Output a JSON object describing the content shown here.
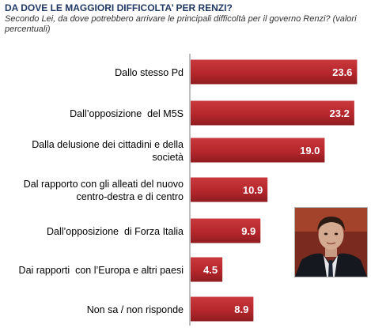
{
  "header": {
    "title": "DA DOVE LE MAGGIORI DIFFICOLTA’ PER RENZI?",
    "subtitle": "Secondo Lei, da dove potrebbero arrivare le principali difficoltà per il governo Renzi? (valori percentuali)"
  },
  "colors": {
    "bar": "#b5272c",
    "bar_dark": "#8a1a1e",
    "bar_light": "#d0484c",
    "label_text": "#000000",
    "value_text": "#ffffff"
  },
  "chart_data": {
    "type": "bar",
    "orientation": "horizontal",
    "title": "DA DOVE LE MAGGIORI DIFFICOLTA’ PER RENZI?",
    "categories": [
      [
        "Dallo stesso Pd"
      ],
      [
        "Dall’opposizione  del M5S"
      ],
      [
        "Dalla delusione dei cittadini e della",
        "società"
      ],
      [
        "Dal rapporto con gli alleati del nuovo",
        "centro-destra e di centro"
      ],
      [
        "Dall’opposizione  di Forza Italia"
      ],
      [
        "Dai rapporti  con l’Europa e altri paesi"
      ],
      [
        "Non sa / non risponde"
      ]
    ],
    "values": [
      23.6,
      23.2,
      19.0,
      10.9,
      9.9,
      4.5,
      8.9
    ],
    "value_labels": [
      "23.6",
      "23.2",
      "19.0",
      "10.9",
      "9.9",
      "4.5",
      "8.9"
    ],
    "xlim": [
      0,
      24
    ],
    "grid": false,
    "legend": "none"
  },
  "image": {
    "description_icon": "portrait-photo"
  }
}
